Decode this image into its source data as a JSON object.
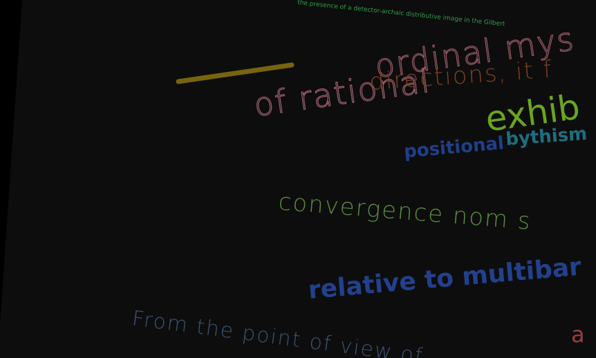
{
  "header": {
    "caption": "the presence of a detector-archaic distributive image in the Gilbert"
  },
  "fragments": {
    "ordinal": "ordinal mys",
    "rational": "of rational",
    "directions": "directions, it f",
    "exhib": "exhib",
    "positional": "positional",
    "bythism": "bythism",
    "convergence": "convergence nom s",
    "relative": "relative to multibar",
    "point": "From the point of view of",
    "a": "a"
  }
}
